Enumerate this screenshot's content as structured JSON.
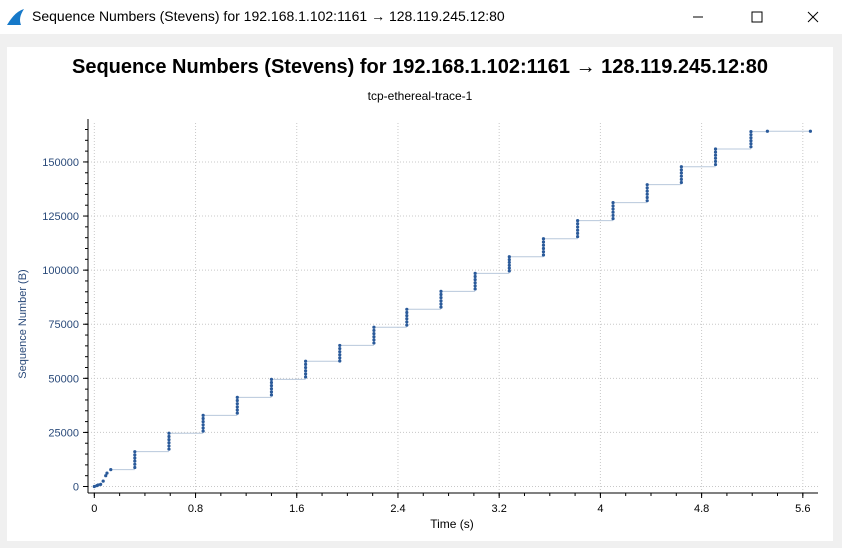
{
  "window": {
    "title": "Sequence Numbers (Stevens) for 192.168.1.102:1161 → 128.119.245.12:80",
    "controls": [
      "minimize-icon",
      "maximize-icon",
      "close-icon"
    ],
    "app_icon": "wireshark-fin-icon"
  },
  "colors": {
    "accent": "#2a5a9a",
    "segment_line": "#b8c8dc",
    "grid": "#c8c8c8",
    "axis_text": "#2a4a7a"
  },
  "chart_data": {
    "type": "scatter",
    "title": "Sequence Numbers (Stevens) for 192.168.1.102:1161 → 128.119.245.12:80",
    "subtitle": "tcp-ethereal-trace-1",
    "xlabel": "Time (s)",
    "ylabel": "Sequence Number (B)",
    "xlim": [
      -0.05,
      5.72
    ],
    "ylim": [
      -3000,
      168000
    ],
    "xticks": [
      0,
      0.8,
      1.6,
      2.4,
      3.2,
      4,
      4.8,
      5.6
    ],
    "xtick_labels": [
      "0",
      "0.8",
      "1.6",
      "2.4",
      "3.2",
      "4",
      "4.8",
      "5.6"
    ],
    "yticks": [
      0,
      25000,
      50000,
      75000,
      100000,
      125000,
      150000
    ],
    "ytick_labels": [
      "0",
      "25000",
      "50000",
      "75000",
      "100000",
      "125000",
      "150000"
    ],
    "grid": true,
    "legend": "none",
    "initial_points": [
      {
        "x": 0.0,
        "y": 0
      },
      {
        "x": 0.02,
        "y": 400
      },
      {
        "x": 0.03,
        "y": 700
      },
      {
        "x": 0.05,
        "y": 1000
      },
      {
        "x": 0.07,
        "y": 2500
      },
      {
        "x": 0.09,
        "y": 5000
      },
      {
        "x": 0.1,
        "y": 6200
      },
      {
        "x": 0.13,
        "y": 7800
      }
    ],
    "bursts": [
      {
        "x": 0.32,
        "y_start": 8800,
        "y_end": 16100,
        "points": 6
      },
      {
        "x": 0.59,
        "y_start": 17300,
        "y_end": 24600,
        "points": 6
      },
      {
        "x": 0.86,
        "y_start": 25600,
        "y_end": 32900,
        "points": 6
      },
      {
        "x": 1.13,
        "y_start": 33900,
        "y_end": 41200,
        "points": 6
      },
      {
        "x": 1.4,
        "y_start": 42300,
        "y_end": 49500,
        "points": 6
      },
      {
        "x": 1.67,
        "y_start": 50600,
        "y_end": 57900,
        "points": 6
      },
      {
        "x": 1.94,
        "y_start": 58000,
        "y_end": 65200,
        "points": 6
      },
      {
        "x": 2.21,
        "y_start": 66300,
        "y_end": 73600,
        "points": 6
      },
      {
        "x": 2.47,
        "y_start": 74600,
        "y_end": 81900,
        "points": 6
      },
      {
        "x": 2.74,
        "y_start": 82900,
        "y_end": 90200,
        "points": 6
      },
      {
        "x": 3.01,
        "y_start": 91300,
        "y_end": 98500,
        "points": 6
      },
      {
        "x": 3.28,
        "y_start": 99600,
        "y_end": 106200,
        "points": 6
      },
      {
        "x": 3.55,
        "y_start": 107000,
        "y_end": 114500,
        "points": 6
      },
      {
        "x": 3.82,
        "y_start": 115500,
        "y_end": 122900,
        "points": 6
      },
      {
        "x": 4.1,
        "y_start": 123800,
        "y_end": 131200,
        "points": 6
      },
      {
        "x": 4.37,
        "y_start": 132100,
        "y_end": 139500,
        "points": 6
      },
      {
        "x": 4.64,
        "y_start": 140500,
        "y_end": 147800,
        "points": 6
      },
      {
        "x": 4.91,
        "y_start": 148800,
        "y_end": 156000,
        "points": 6
      },
      {
        "x": 5.19,
        "y_start": 157000,
        "y_end": 164000,
        "points": 6
      }
    ],
    "tail_points": [
      {
        "x": 5.32,
        "y": 164200
      },
      {
        "x": 5.66,
        "y": 164200
      }
    ]
  }
}
